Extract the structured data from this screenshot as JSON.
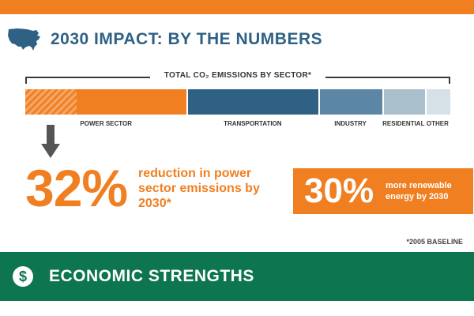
{
  "title": "2030 IMPACT: BY THE NUMBERS",
  "icons": {
    "map": "usa-map-icon",
    "arrow": "arrow-down-icon",
    "dollar": "dollar-icon"
  },
  "chart_data": {
    "type": "bar",
    "title": "TOTAL CO₂ EMISSIONS BY SECTOR*",
    "categories": [
      "POWER SECTOR",
      "TRANSPORTATION",
      "INDUSTRY",
      "RESIDENTIAL",
      "OTHER"
    ],
    "values": [
      38,
      31,
      15,
      10,
      6
    ],
    "colors": [
      "#f07f22",
      "#2f6185",
      "#5b87a4",
      "#a9bfcc",
      "#d6e1e7"
    ],
    "highlight": {
      "category": "POWER SECTOR",
      "reduction_fraction": 0.32,
      "pattern": "hatched"
    },
    "xlabel": "",
    "ylabel": ""
  },
  "stats": {
    "reduction_pct": "32%",
    "reduction_text": "reduction in power sector emissions by 2030*",
    "renewable_pct": "30%",
    "renewable_text": "more renewable energy by 2030"
  },
  "footnote": "*2005 BASELINE",
  "section": {
    "title": "ECONOMIC STRENGTHS",
    "dollar_symbol": "$"
  },
  "colors": {
    "orange": "#f07f22",
    "blue": "#2f6185",
    "green": "#0d7550"
  }
}
